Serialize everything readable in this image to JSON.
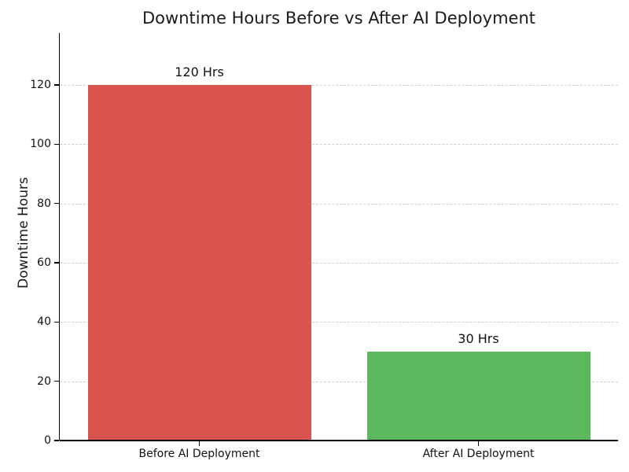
{
  "chart_data": {
    "type": "bar",
    "title": "Downtime Hours Before vs After AI Deployment",
    "ylabel": "Downtime Hours",
    "xlabel": "",
    "categories": [
      "Before AI Deployment",
      "After AI Deployment"
    ],
    "values": [
      120,
      30
    ],
    "bar_labels": [
      "120 Hrs",
      "30 Hrs"
    ],
    "bar_colors": [
      "#d9534f",
      "#5cb85c"
    ],
    "yticks": [
      0,
      20,
      40,
      60,
      80,
      100,
      120
    ],
    "ylim": [
      0,
      137.5
    ],
    "grid": "horizontal-dashed",
    "legend": "none"
  },
  "colors": {
    "background": "#ffffff",
    "grid": "#cfcfcf",
    "axis": "#000000",
    "text": "#1a1a1a"
  }
}
